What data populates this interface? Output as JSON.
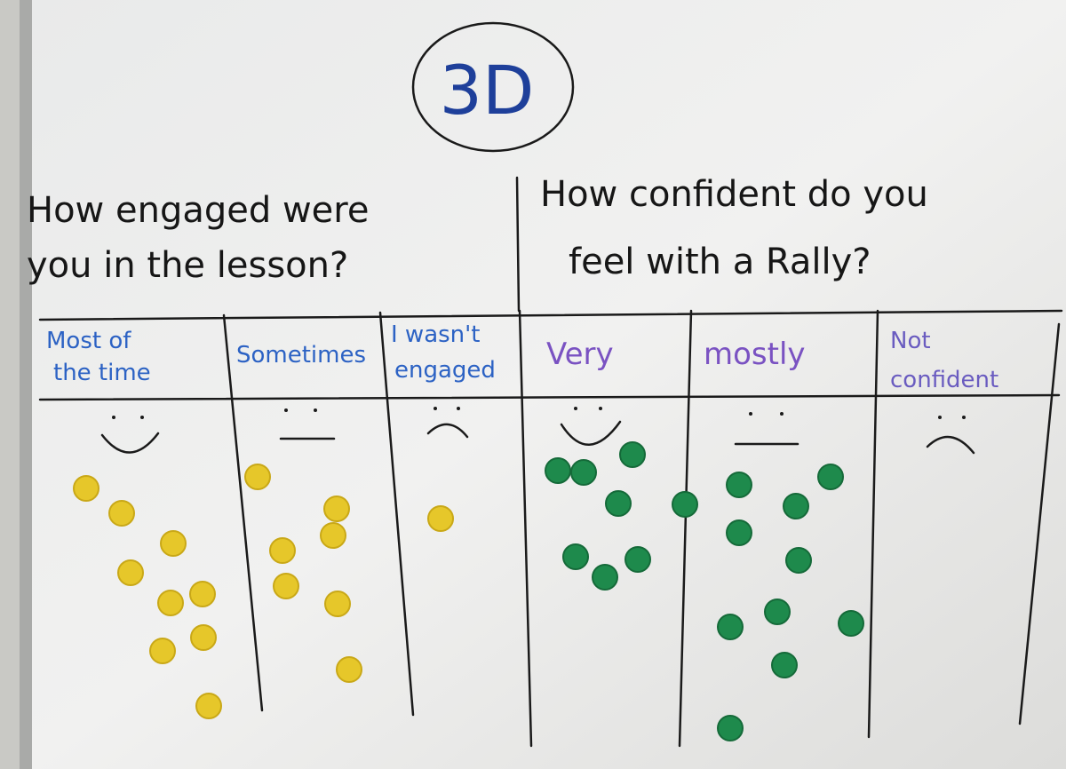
{
  "board": {
    "label": "3D",
    "questions": [
      {
        "lines": [
          "How engaged were",
          "you in  the lesson?"
        ],
        "options": [
          {
            "lines": [
              "Most of",
              "the time"
            ]
          },
          {
            "lines": [
              "Sometimes"
            ]
          },
          {
            "lines": [
              "I wasn't",
              "engaged"
            ]
          }
        ]
      },
      {
        "lines": [
          "How confident do you",
          "feel with a Rally?"
        ],
        "options": [
          {
            "lines": [
              "Very"
            ]
          },
          {
            "lines": [
              "mostly"
            ]
          },
          {
            "lines": [
              "Not",
              "confident"
            ]
          }
        ]
      }
    ]
  }
}
